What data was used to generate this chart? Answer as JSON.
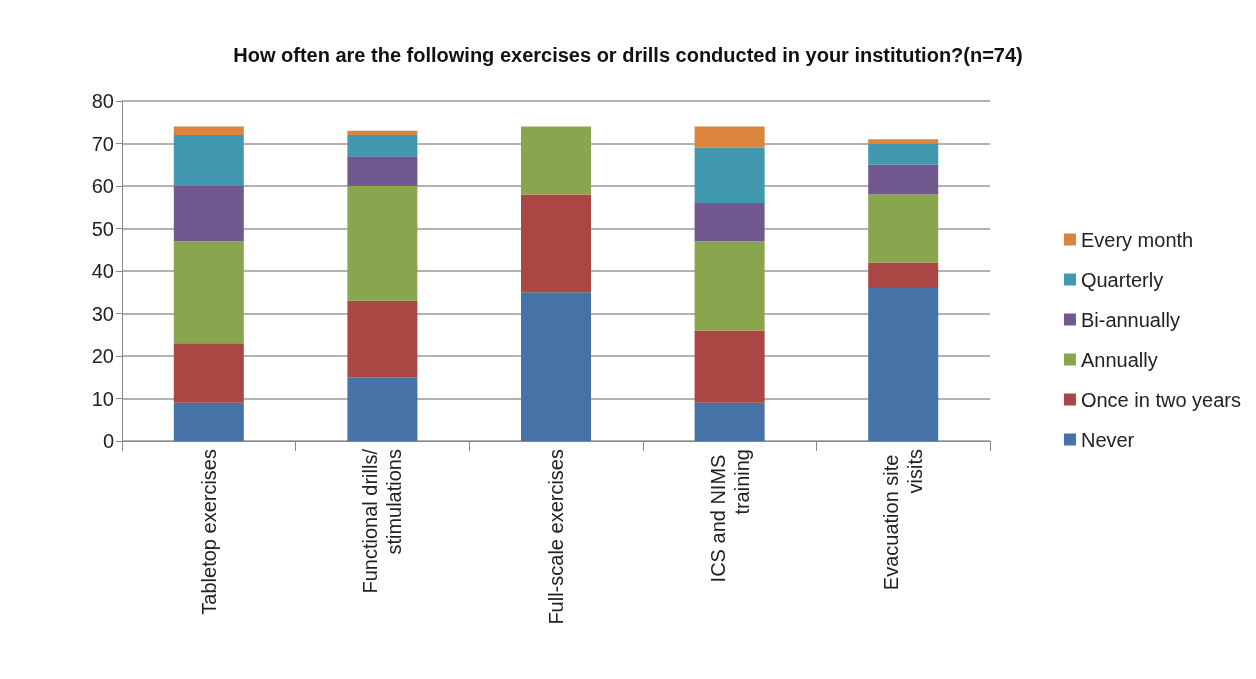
{
  "chart_data": {
    "type": "bar",
    "title": "How often are the following exercises or drills conducted in your institution?(n=74)",
    "categories": [
      "Tabletop exercises",
      "Functional drills/stimulations",
      "Full-scale exercises",
      "ICS and NIMS training",
      "Evacuation site visits"
    ],
    "stacked": true,
    "ylim": [
      0,
      80
    ],
    "yticks": [
      0,
      10,
      20,
      30,
      40,
      50,
      60,
      70,
      80
    ],
    "grid": "y",
    "legend": "right",
    "series": [
      {
        "name": "Never",
        "color": "#4572a7",
        "values": [
          9,
          15,
          35,
          9,
          36
        ]
      },
      {
        "name": "Once in two years",
        "color": "#aa4643",
        "values": [
          14,
          18,
          23,
          17,
          6
        ]
      },
      {
        "name": "Annually",
        "color": "#89a54e",
        "values": [
          24,
          27,
          16,
          21,
          16
        ]
      },
      {
        "name": "Bi-annually",
        "color": "#71588f",
        "values": [
          13,
          7,
          0,
          9,
          7
        ]
      },
      {
        "name": "Quarterly",
        "color": "#4198af",
        "values": [
          12,
          5,
          0,
          13,
          5
        ]
      },
      {
        "name": "Every month",
        "color": "#db843d",
        "values": [
          2,
          1,
          0,
          5,
          1
        ]
      }
    ]
  }
}
